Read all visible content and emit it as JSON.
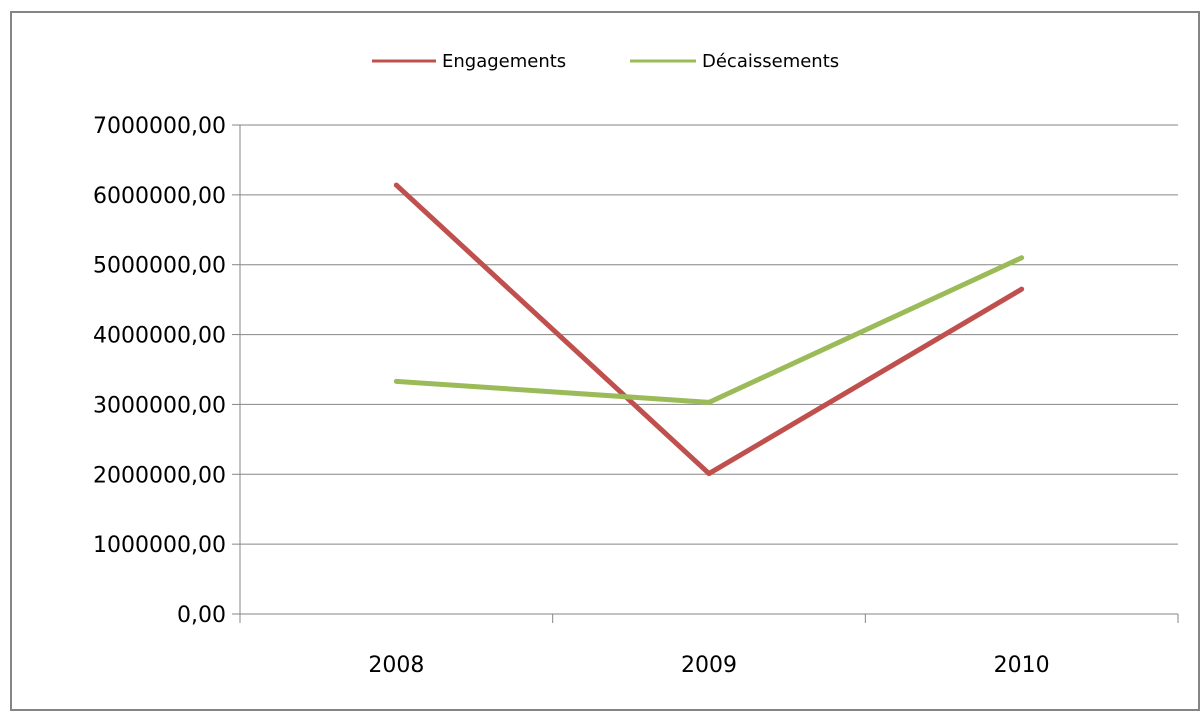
{
  "chart_data": {
    "type": "line",
    "categories": [
      "2008",
      "2009",
      "2010"
    ],
    "series": [
      {
        "name": "Engagements",
        "color": "#c0504d",
        "values": [
          6140000,
          2010000,
          4650000
        ]
      },
      {
        "name": "Décaissements",
        "color": "#9bbb59",
        "values": [
          3330000,
          3030000,
          5100000
        ]
      }
    ],
    "ylim": [
      0,
      7000000
    ],
    "y_ticks": [
      {
        "value": 0,
        "label": "0,00"
      },
      {
        "value": 1000000,
        "label": "1000000,00"
      },
      {
        "value": 2000000,
        "label": "2000000,00"
      },
      {
        "value": 3000000,
        "label": "3000000,00"
      },
      {
        "value": 4000000,
        "label": "4000000,00"
      },
      {
        "value": 5000000,
        "label": "5000000,00"
      },
      {
        "value": 6000000,
        "label": "6000000,00"
      },
      {
        "value": 7000000,
        "label": "7000000,00"
      }
    ],
    "grid": true,
    "legend_position": "top"
  }
}
